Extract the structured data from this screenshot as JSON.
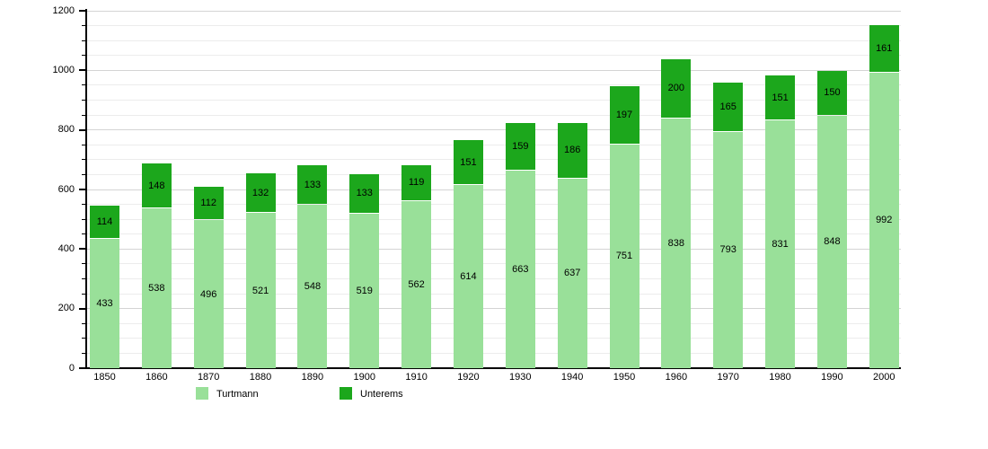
{
  "chart_data": {
    "type": "bar",
    "stacked": true,
    "title": "",
    "xlabel": "",
    "ylabel": "",
    "categories": [
      "1850",
      "1860",
      "1870",
      "1880",
      "1890",
      "1900",
      "1910",
      "1920",
      "1930",
      "1940",
      "1950",
      "1960",
      "1970",
      "1980",
      "1990",
      "2000"
    ],
    "series": [
      {
        "name": "Turtmann",
        "color": "#99e099",
        "values": [
          433,
          538,
          496,
          521,
          548,
          519,
          562,
          614,
          663,
          637,
          751,
          838,
          793,
          831,
          848,
          992
        ]
      },
      {
        "name": "Unterems",
        "color": "#1ca71c",
        "values": [
          114,
          148,
          112,
          132,
          133,
          133,
          119,
          151,
          159,
          186,
          197,
          200,
          165,
          151,
          150,
          161
        ]
      }
    ],
    "totals": [
      547,
      686,
      608,
      653,
      681,
      652,
      681,
      765,
      822,
      823,
      948,
      1038,
      958,
      982,
      998,
      1153
    ],
    "ylim": [
      0,
      1200
    ],
    "ytick_labels": [
      "0",
      "200",
      "400",
      "600",
      "800",
      "1000",
      "1200"
    ],
    "ytick_step": 200,
    "yminor_step": 50,
    "grid": true,
    "legend_position": "bottom"
  }
}
